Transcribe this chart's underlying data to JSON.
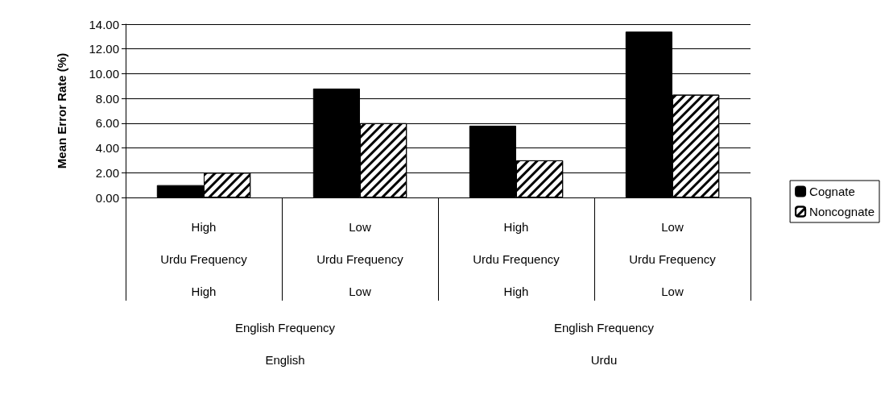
{
  "chart_data": {
    "type": "bar",
    "ylabel": "Mean Error Rate (%)",
    "categories": [
      "High\nUrdu Frequency\nHigh",
      "Low\nUrdu Frequency\nLow",
      "High\nUrdu Frequency\nHigh",
      "Low\nUrdu Frequency\nLow"
    ],
    "series": [
      {
        "name": "Cognate",
        "color": "#000000",
        "values": [
          1.0,
          8.8,
          5.8,
          13.4
        ]
      },
      {
        "name": "Noncognate",
        "color": "#ffffff",
        "values": [
          2.0,
          6.0,
          3.0,
          8.3
        ]
      }
    ],
    "annotations": [
      "English Frequency\nEnglish",
      "English Frequency\nUrdu"
    ],
    "ylim": [
      0,
      14
    ],
    "yticks": [
      {
        "value": 0,
        "label": "0.00"
      },
      {
        "value": 2,
        "label": "2.00"
      },
      {
        "value": 4,
        "label": "4.00"
      },
      {
        "value": 6,
        "label": "6.00"
      },
      {
        "value": 8,
        "label": "8.00"
      },
      {
        "value": 10,
        "label": "10.00"
      },
      {
        "value": 12,
        "label": "12.00"
      },
      {
        "value": 14,
        "label": "14.00"
      }
    ],
    "grid": "y",
    "legend": "right"
  }
}
